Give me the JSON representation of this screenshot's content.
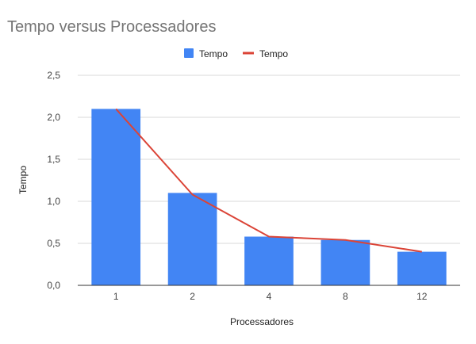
{
  "chart_data": {
    "type": "bar",
    "title": "Tempo versus Processadores",
    "xlabel": "Processadores",
    "ylabel": "Tempo",
    "categories": [
      "1",
      "2",
      "4",
      "8",
      "12"
    ],
    "ylim": [
      0,
      2.5
    ],
    "yticks": [
      "0,0",
      "0,5",
      "1,0",
      "1,5",
      "2,0",
      "2,5"
    ],
    "ytick_values": [
      0,
      0.5,
      1.0,
      1.5,
      2.0,
      2.5
    ],
    "grid": true,
    "legend_position": "top",
    "series": [
      {
        "name": "Tempo",
        "kind": "bar",
        "color": "#4285f4",
        "values": [
          2.1,
          1.1,
          0.58,
          0.54,
          0.4
        ]
      },
      {
        "name": "Tempo",
        "kind": "line",
        "color": "#db4437",
        "values": [
          2.1,
          1.08,
          0.58,
          0.54,
          0.4
        ]
      }
    ]
  }
}
